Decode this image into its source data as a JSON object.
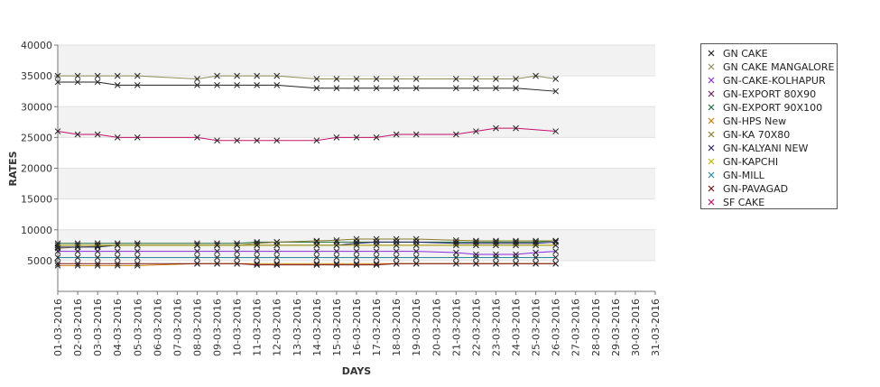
{
  "chart_data": {
    "type": "line",
    "xlabel": "DAYS",
    "ylabel": "RATES",
    "ylim": [
      0,
      40000
    ],
    "yticks": [
      5000,
      10000,
      15000,
      20000,
      25000,
      30000,
      35000,
      40000
    ],
    "categories": [
      "01-03-2016",
      "02-03-2016",
      "03-03-2016",
      "04-03-2016",
      "05-03-2016",
      "06-03-2016",
      "07-03-2016",
      "08-03-2016",
      "09-03-2016",
      "10-03-2016",
      "11-03-2016",
      "12-03-2016",
      "13-03-2016",
      "14-03-2016",
      "15-03-2016",
      "16-03-2016",
      "17-03-2016",
      "18-03-2016",
      "19-03-2016",
      "20-03-2016",
      "21-03-2016",
      "22-03-2016",
      "23-03-2016",
      "24-03-2016",
      "25-03-2016",
      "26-03-2016",
      "27-03-2016",
      "28-03-2016",
      "29-03-2016",
      "30-03-2016",
      "31-03-2016"
    ],
    "grid": true,
    "legend_position": "right",
    "series": [
      {
        "name": "GN CAKE",
        "color": "#222222",
        "values": [
          34000,
          34000,
          34000,
          33500,
          33500,
          null,
          null,
          33500,
          33500,
          33500,
          33500,
          33500,
          null,
          33000,
          33000,
          33000,
          33000,
          33000,
          33000,
          null,
          33000,
          33000,
          33000,
          33000,
          null,
          32500,
          null,
          null,
          null,
          null,
          null
        ]
      },
      {
        "name": "GN CAKE MANGALORE",
        "color": "#8c8c5a",
        "values": [
          35000,
          35000,
          35000,
          35000,
          35000,
          null,
          null,
          34500,
          35000,
          35000,
          35000,
          35000,
          null,
          34500,
          34500,
          34500,
          34500,
          34500,
          34500,
          null,
          34500,
          34500,
          34500,
          34500,
          35000,
          34500,
          null,
          null,
          null,
          null,
          null
        ]
      },
      {
        "name": "GN-CAKE-KOLHAPUR",
        "color": "#8a2be2",
        "values": [
          6500,
          6500,
          6500,
          6500,
          6500,
          null,
          null,
          6500,
          6500,
          6500,
          6500,
          6500,
          null,
          6500,
          6500,
          6500,
          6500,
          6500,
          6500,
          null,
          6300,
          6000,
          6000,
          6000,
          6300,
          6500,
          null,
          null,
          null,
          null,
          null
        ]
      },
      {
        "name": "GN-EXPORT 80X90",
        "color": "#6a1b6a",
        "values": [
          7500,
          7500,
          7500,
          7500,
          7500,
          null,
          null,
          7500,
          7500,
          7500,
          7500,
          7500,
          null,
          7500,
          7500,
          7500,
          7500,
          7500,
          7500,
          null,
          7500,
          7500,
          7500,
          7500,
          7500,
          7500,
          null,
          null,
          null,
          null,
          null
        ]
      },
      {
        "name": "GN-EXPORT 90X100",
        "color": "#1f6e3a",
        "values": [
          7800,
          7800,
          7800,
          7800,
          7800,
          null,
          null,
          7800,
          7800,
          7800,
          8000,
          8000,
          null,
          8000,
          8000,
          8000,
          8000,
          8000,
          8000,
          null,
          8000,
          8000,
          8000,
          8000,
          8000,
          8200,
          null,
          null,
          null,
          null,
          null
        ]
      },
      {
        "name": "GN-HPS New",
        "color": "#c87a00",
        "values": [
          4200,
          4200,
          4200,
          4200,
          4200,
          null,
          null,
          4500,
          4500,
          4500,
          4500,
          4500,
          null,
          4500,
          4500,
          4500,
          4500,
          4500,
          4500,
          null,
          4500,
          4500,
          4500,
          4500,
          4500,
          4500,
          null,
          null,
          null,
          null,
          null
        ]
      },
      {
        "name": "GN-KA 70X80",
        "color": "#8a7a2a",
        "values": [
          7000,
          7200,
          7300,
          7500,
          7500,
          null,
          null,
          7500,
          7500,
          7500,
          7800,
          8000,
          null,
          8200,
          8300,
          8500,
          8500,
          8500,
          8500,
          null,
          8300,
          8200,
          8200,
          8200,
          8200,
          8200,
          null,
          null,
          null,
          null,
          null
        ]
      },
      {
        "name": "GN-KALYANI NEW",
        "color": "#2a2a6e",
        "values": [
          7200,
          7200,
          7200,
          7500,
          7500,
          null,
          null,
          7500,
          7500,
          7500,
          7500,
          7500,
          null,
          7500,
          7500,
          7800,
          8000,
          8000,
          8000,
          null,
          7800,
          7800,
          7800,
          7800,
          7800,
          8000,
          null,
          null,
          null,
          null,
          null
        ]
      },
      {
        "name": "GN-KAPCHI",
        "color": "#b8b800",
        "values": [
          7500,
          7500,
          7500,
          7500,
          7500,
          null,
          null,
          7500,
          7500,
          7500,
          7500,
          7500,
          null,
          7500,
          7500,
          7500,
          7500,
          7500,
          7500,
          null,
          7500,
          7500,
          7500,
          7500,
          7500,
          7500,
          null,
          null,
          null,
          null,
          null
        ]
      },
      {
        "name": "GN-MILL",
        "color": "#2a8aa0",
        "values": [
          5500,
          5500,
          5500,
          5500,
          5500,
          null,
          null,
          5500,
          5500,
          5500,
          5500,
          5500,
          null,
          5500,
          5500,
          5500,
          5500,
          5500,
          5500,
          null,
          5500,
          5500,
          5500,
          5500,
          5500,
          5500,
          null,
          null,
          null,
          null,
          null
        ]
      },
      {
        "name": "GN-PAVAGAD",
        "color": "#7a1010",
        "values": [
          4500,
          4500,
          4500,
          4500,
          4500,
          null,
          null,
          4500,
          4500,
          4500,
          4300,
          4300,
          null,
          4300,
          4300,
          4300,
          4300,
          4500,
          4500,
          null,
          4500,
          4500,
          4500,
          4500,
          4500,
          4500,
          null,
          null,
          null,
          null,
          null
        ]
      },
      {
        "name": "SF CAKE",
        "color": "#c0106a",
        "values": [
          26000,
          25500,
          25500,
          25000,
          25000,
          null,
          null,
          25000,
          24500,
          24500,
          24500,
          24500,
          null,
          24500,
          25000,
          25000,
          25000,
          25500,
          25500,
          null,
          25500,
          26000,
          26500,
          26500,
          null,
          26000,
          null,
          null,
          null,
          null,
          null
        ]
      }
    ]
  }
}
